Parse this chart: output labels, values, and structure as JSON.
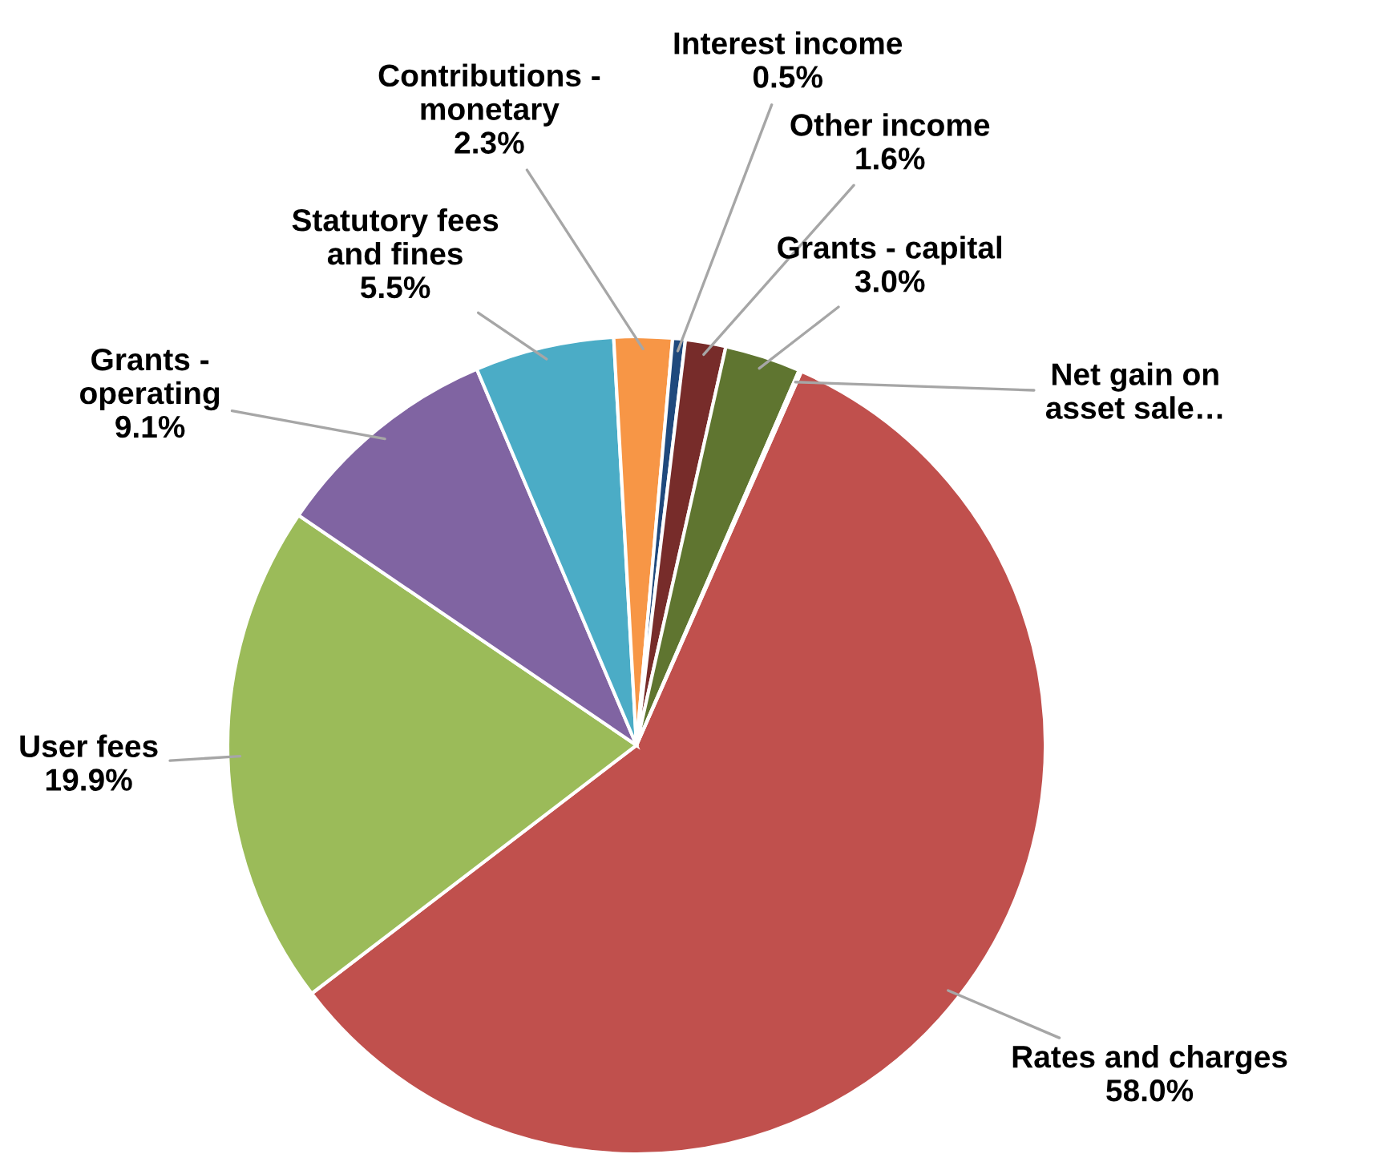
{
  "chart_data": {
    "type": "pie",
    "categories": [
      "Rates and charges",
      "User fees",
      "Grants - operating",
      "Statutory fees and fines",
      "Contributions - monetary",
      "Interest income",
      "Other income",
      "Grants - capital",
      "Net gain on asset sale…"
    ],
    "values": [
      58.0,
      19.9,
      9.1,
      5.5,
      2.3,
      0.5,
      1.6,
      3.0,
      0.1
    ],
    "value_labels": [
      "58.0%",
      "19.9%",
      "9.1%",
      "5.5%",
      "2.3%",
      "0.5%",
      "1.6%",
      "3.0%",
      null
    ],
    "colors": [
      "#c0504d",
      "#9bbb59",
      "#8064a2",
      "#4bacc6",
      "#f79646",
      "#1f497d",
      "#772c2a",
      "#5f7530",
      "#4d3b62"
    ]
  }
}
